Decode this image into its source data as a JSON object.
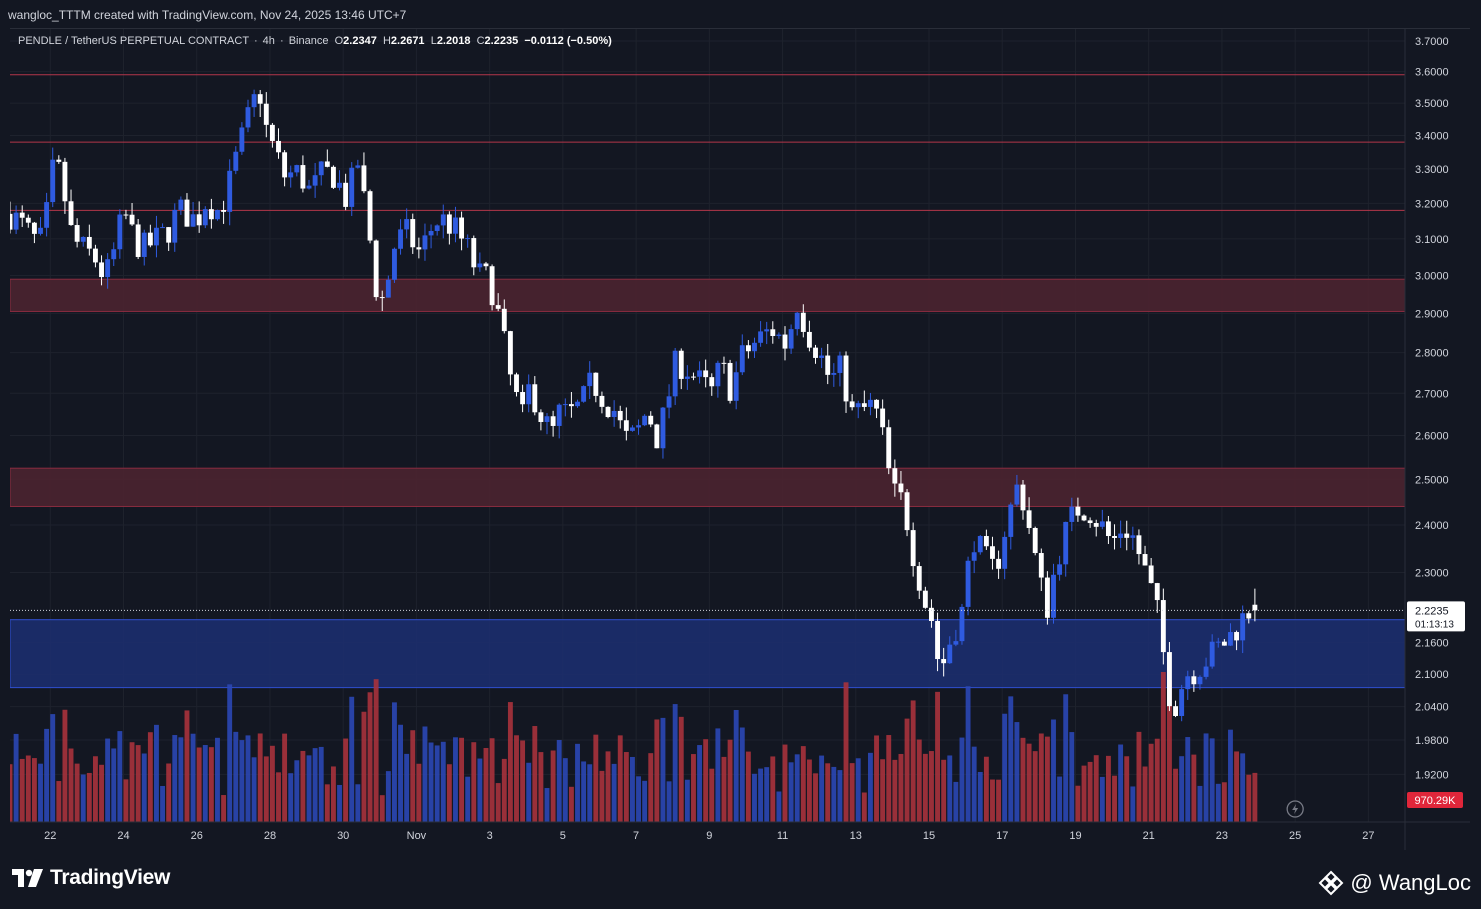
{
  "caption": "wangloc_TTTM created with TradingView.com, Nov 24, 2025 13:46 UTC+7",
  "legend": {
    "symbol": "PENDLE / TetherUS PERPETUAL CONTRACT",
    "interval": "4h",
    "exchange": "Binance",
    "o_label": "O",
    "o": "2.2347",
    "h_label": "H",
    "h": "2.2671",
    "l_label": "L",
    "l": "2.2018",
    "c_label": "C",
    "c": "2.2235",
    "change": "−0.0112 (−0.50%)"
  },
  "branding": {
    "logo_text": "TradingView",
    "watermark": "@ WangLoc"
  },
  "last_price": {
    "value": "2.2235",
    "countdown": "01:13:13"
  },
  "volume_badge": "970.29K",
  "colors": {
    "bg": "#131722",
    "up": "#2f5be0",
    "down": "#ffffff",
    "vol_up": "#2b47b5",
    "vol_down": "#a8323c",
    "resistance_zone": "#4b2330",
    "support_zone": "#1c2d6e",
    "level_line": "#b3364a"
  },
  "chart_data": {
    "type": "candlestick",
    "title": "PENDLE / TetherUS PERPETUAL CONTRACT · 4h · Binance",
    "y_axis": {
      "labels": [
        "3.7000",
        "3.6000",
        "3.5000",
        "3.4000",
        "3.3000",
        "3.2000",
        "3.1000",
        "3.0000",
        "2.9000",
        "2.8000",
        "2.7000",
        "2.6000",
        "2.5000",
        "2.4000",
        "2.3000",
        "2.1600",
        "2.1000",
        "2.0400",
        "1.9800",
        "1.9200"
      ],
      "ylim": [
        1.84,
        3.74
      ],
      "scale": "log"
    },
    "x_axis": {
      "tick_labels": [
        "22",
        "24",
        "26",
        "28",
        "30",
        "Nov",
        "3",
        "5",
        "7",
        "9",
        "11",
        "13",
        "15",
        "17",
        "19",
        "21",
        "23",
        "25",
        "27"
      ],
      "tick_days": [
        22,
        24,
        26,
        28,
        30,
        32,
        34,
        36,
        38,
        40,
        42,
        44,
        46,
        48,
        50,
        52,
        54,
        56,
        58
      ],
      "range_days": [
        20.9,
        59.0
      ],
      "note_days": "day numbers counted from Oct 1 (32 = Nov 1)"
    },
    "zones": [
      {
        "kind": "resistance",
        "low": 2.905,
        "high": 2.99
      },
      {
        "kind": "resistance",
        "low": 2.44,
        "high": 2.525
      },
      {
        "kind": "support",
        "low": 2.075,
        "high": 2.205
      }
    ],
    "levels": [
      3.59,
      3.38,
      3.18
    ],
    "pivots": [
      [
        20.9,
        3.17
      ],
      [
        21.3,
        3.13
      ],
      [
        21.7,
        3.08
      ],
      [
        22.0,
        3.21
      ],
      [
        22.1,
        3.33
      ],
      [
        22.3,
        3.27
      ],
      [
        22.6,
        3.1
      ],
      [
        22.9,
        3.07
      ],
      [
        23.2,
        3.05
      ],
      [
        23.5,
        2.99
      ],
      [
        23.8,
        3.08
      ],
      [
        24.0,
        3.18
      ],
      [
        24.2,
        3.12
      ],
      [
        24.5,
        3.07
      ],
      [
        24.8,
        3.09
      ],
      [
        25.2,
        3.12
      ],
      [
        25.5,
        3.18
      ],
      [
        25.7,
        3.17
      ],
      [
        26.0,
        3.15
      ],
      [
        26.3,
        3.22
      ],
      [
        26.5,
        3.17
      ],
      [
        26.8,
        3.22
      ],
      [
        27.1,
        3.34
      ],
      [
        27.4,
        3.45
      ],
      [
        27.7,
        3.55
      ],
      [
        27.9,
        3.42
      ],
      [
        28.1,
        3.36
      ],
      [
        28.4,
        3.28
      ],
      [
        28.8,
        3.29
      ],
      [
        29.1,
        3.23
      ],
      [
        29.4,
        3.28
      ],
      [
        29.7,
        3.29
      ],
      [
        30.1,
        3.21
      ],
      [
        30.4,
        3.32
      ],
      [
        30.7,
        3.12
      ],
      [
        30.9,
        2.97
      ],
      [
        31.1,
        2.93
      ],
      [
        31.4,
        3.08
      ],
      [
        31.7,
        3.12
      ],
      [
        32.1,
        3.06
      ],
      [
        32.5,
        3.15
      ],
      [
        32.8,
        3.15
      ],
      [
        33.1,
        3.12
      ],
      [
        33.4,
        3.07
      ],
      [
        33.7,
        3.0
      ],
      [
        34.0,
        2.99
      ],
      [
        34.3,
        2.87
      ],
      [
        34.6,
        2.72
      ],
      [
        34.9,
        2.64
      ],
      [
        35.1,
        2.72
      ],
      [
        35.4,
        2.65
      ],
      [
        35.7,
        2.6
      ],
      [
        35.9,
        2.65
      ],
      [
        36.2,
        2.65
      ],
      [
        36.5,
        2.67
      ],
      [
        36.8,
        2.73
      ],
      [
        37.1,
        2.69
      ],
      [
        37.4,
        2.66
      ],
      [
        37.7,
        2.59
      ],
      [
        38.0,
        2.6
      ],
      [
        38.3,
        2.66
      ],
      [
        38.6,
        2.59
      ],
      [
        38.9,
        2.7
      ],
      [
        39.1,
        2.78
      ],
      [
        39.4,
        2.76
      ],
      [
        39.7,
        2.73
      ],
      [
        40.1,
        2.7
      ],
      [
        40.3,
        2.77
      ],
      [
        40.6,
        2.71
      ],
      [
        40.9,
        2.79
      ],
      [
        41.3,
        2.83
      ],
      [
        41.7,
        2.86
      ],
      [
        42.1,
        2.82
      ],
      [
        42.4,
        2.93
      ],
      [
        42.7,
        2.85
      ],
      [
        43.0,
        2.8
      ],
      [
        43.3,
        2.73
      ],
      [
        43.6,
        2.76
      ],
      [
        43.9,
        2.65
      ],
      [
        44.2,
        2.66
      ],
      [
        44.5,
        2.67
      ],
      [
        44.7,
        2.61
      ],
      [
        45.0,
        2.47
      ],
      [
        45.3,
        2.45
      ],
      [
        45.6,
        2.33
      ],
      [
        45.9,
        2.24
      ],
      [
        46.1,
        2.2
      ],
      [
        46.3,
        2.1
      ],
      [
        46.6,
        2.17
      ],
      [
        46.9,
        2.22
      ],
      [
        47.2,
        2.38
      ],
      [
        47.5,
        2.33
      ],
      [
        47.8,
        2.3
      ],
      [
        48.1,
        2.4
      ],
      [
        48.4,
        2.48
      ],
      [
        48.6,
        2.45
      ],
      [
        48.9,
        2.33
      ],
      [
        49.2,
        2.22
      ],
      [
        49.5,
        2.33
      ],
      [
        49.8,
        2.4
      ],
      [
        50.1,
        2.44
      ],
      [
        50.4,
        2.43
      ],
      [
        50.7,
        2.4
      ],
      [
        51.0,
        2.36
      ],
      [
        51.3,
        2.4
      ],
      [
        51.6,
        2.37
      ],
      [
        52.0,
        2.28
      ],
      [
        52.3,
        2.2
      ],
      [
        52.5,
        2.08
      ],
      [
        52.7,
        2.04
      ],
      [
        53.0,
        2.1
      ],
      [
        53.3,
        2.11
      ],
      [
        53.6,
        2.13
      ],
      [
        53.9,
        2.15
      ],
      [
        54.2,
        2.17
      ],
      [
        54.5,
        2.2
      ],
      [
        54.8,
        2.23
      ],
      [
        55.0,
        2.2235
      ]
    ],
    "current_price": 2.2235,
    "volume": {
      "max_label": "970.29K"
    }
  }
}
